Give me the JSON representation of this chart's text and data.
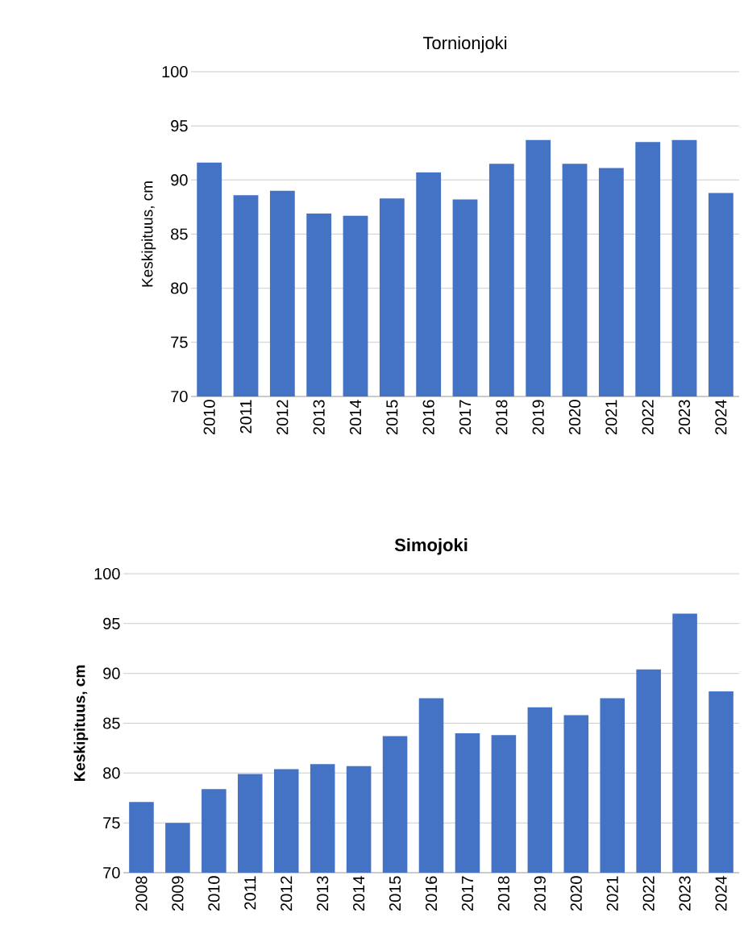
{
  "chart_data": [
    {
      "type": "bar",
      "title": "Tornionjoki",
      "ylabel": "Keskipituus, cm",
      "categories": [
        "2010",
        "2011",
        "2012",
        "2013",
        "2014",
        "2015",
        "2016",
        "2017",
        "2018",
        "2019",
        "2020",
        "2021",
        "2022",
        "2023",
        "2024"
      ],
      "values": [
        91.6,
        88.6,
        89.0,
        86.9,
        86.7,
        88.3,
        90.7,
        88.2,
        91.5,
        93.7,
        91.5,
        91.1,
        93.5,
        93.7,
        88.8
      ],
      "color": "#4472c4",
      "ylim": [
        70,
        100
      ],
      "yticks": [
        70,
        75,
        80,
        85,
        90,
        95,
        100
      ],
      "grid": "y"
    },
    {
      "type": "bar",
      "title": "Simojoki",
      "ylabel": "Keskipituus, cm",
      "categories": [
        "2008",
        "2009",
        "2010",
        "2011",
        "2012",
        "2013",
        "2014",
        "2015",
        "2016",
        "2017",
        "2018",
        "2019",
        "2020",
        "2021",
        "2022",
        "2023",
        "2024"
      ],
      "values": [
        77.1,
        75.0,
        78.4,
        79.9,
        80.4,
        80.9,
        80.7,
        83.7,
        87.5,
        84.0,
        83.8,
        86.6,
        85.8,
        87.5,
        90.4,
        96.0,
        88.2
      ],
      "color": "#4472c4",
      "ylim": [
        70,
        100
      ],
      "yticks": [
        70,
        75,
        80,
        85,
        90,
        95,
        100
      ],
      "grid": "y"
    }
  ]
}
